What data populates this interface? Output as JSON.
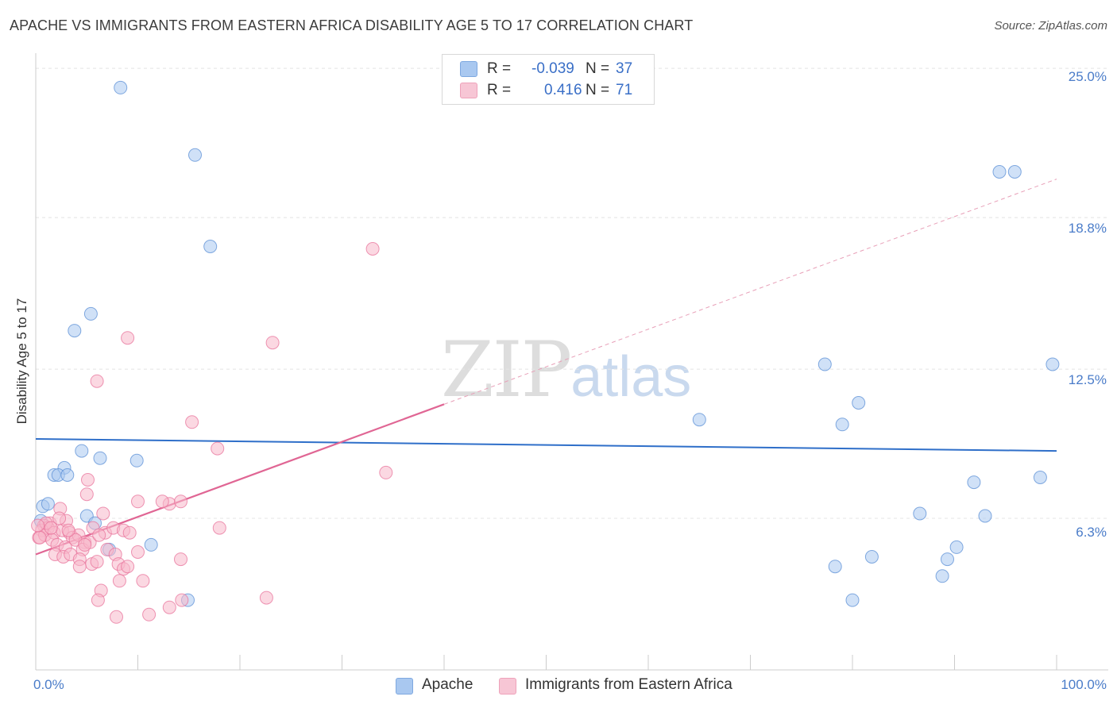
{
  "header": {
    "title": "APACHE VS IMMIGRANTS FROM EASTERN AFRICA DISABILITY AGE 5 TO 17 CORRELATION CHART",
    "source": "Source: ZipAtlas.com"
  },
  "watermark": {
    "zip": "ZIP",
    "atlas": "atlas"
  },
  "legend": {
    "rows": [
      {
        "r_label": "R =",
        "r_value": "-0.039",
        "n_label": "N =",
        "n_value": "37",
        "color": "#a9c8f0"
      },
      {
        "r_label": "R =",
        "r_value": "0.416",
        "n_label": "N =",
        "n_value": "71",
        "color": "#f7b8cb"
      }
    ]
  },
  "bottom_legend": {
    "items": [
      {
        "label": "Apache",
        "color": "#a9c8f0"
      },
      {
        "label": "Immigrants from Eastern Africa",
        "color": "#f7b8cb"
      }
    ]
  },
  "chart_data": {
    "type": "scatter",
    "title": "APACHE VS IMMIGRANTS FROM EASTERN AFRICA DISABILITY AGE 5 TO 17 CORRELATION CHART",
    "xlabel": "",
    "ylabel": "Disability Age 5 to 17",
    "xlim": [
      0,
      100
    ],
    "ylim": [
      0,
      25.5
    ],
    "x_tick_labels": [
      "0.0%",
      "100.0%"
    ],
    "y_ticks": [
      6.3,
      12.5,
      18.8,
      25.0
    ],
    "y_tick_labels": [
      "6.3%",
      "12.5%",
      "18.8%",
      "25.0%"
    ],
    "grid": true,
    "legend_position": "top-center",
    "series": [
      {
        "name": "Apache",
        "color": "#5b8fd6",
        "fill": "#a9c8f0",
        "trend": {
          "x": [
            0,
            100
          ],
          "y": [
            9.6,
            9.1
          ],
          "style": "solid"
        },
        "points": [
          [
            8.3,
            24.2
          ],
          [
            15.6,
            21.4
          ],
          [
            17.1,
            17.6
          ],
          [
            5.4,
            14.8
          ],
          [
            3.8,
            14.1
          ],
          [
            4.5,
            9.1
          ],
          [
            6.3,
            8.8
          ],
          [
            9.9,
            8.7
          ],
          [
            2.8,
            8.4
          ],
          [
            1.8,
            8.1
          ],
          [
            2.2,
            8.1
          ],
          [
            3.1,
            8.1
          ],
          [
            0.7,
            6.8
          ],
          [
            1.2,
            6.9
          ],
          [
            0.5,
            6.2
          ],
          [
            5.0,
            6.4
          ],
          [
            5.8,
            6.1
          ],
          [
            7.2,
            5.0
          ],
          [
            11.3,
            5.2
          ],
          [
            14.9,
            2.9
          ],
          [
            65.0,
            10.4
          ],
          [
            77.3,
            12.7
          ],
          [
            79.0,
            10.2
          ],
          [
            80.6,
            11.1
          ],
          [
            78.3,
            4.3
          ],
          [
            80.0,
            2.9
          ],
          [
            81.9,
            4.7
          ],
          [
            94.4,
            20.7
          ],
          [
            95.9,
            20.7
          ],
          [
            91.9,
            7.8
          ],
          [
            93.0,
            6.4
          ],
          [
            99.6,
            12.7
          ],
          [
            98.4,
            8.0
          ],
          [
            86.6,
            6.5
          ],
          [
            90.2,
            5.1
          ],
          [
            89.3,
            4.6
          ],
          [
            88.8,
            3.9
          ]
        ]
      },
      {
        "name": "Immigrants from Eastern Africa",
        "color": "#e8739b",
        "fill": "#f7b8cb",
        "trend": {
          "x": [
            0,
            100
          ],
          "y": [
            4.8,
            20.4
          ],
          "solid_until_x": 40
        },
        "points": [
          [
            33.0,
            17.5
          ],
          [
            9.0,
            13.8
          ],
          [
            23.2,
            13.6
          ],
          [
            6.0,
            12.0
          ],
          [
            15.3,
            10.3
          ],
          [
            17.8,
            9.2
          ],
          [
            34.3,
            8.2
          ],
          [
            5.1,
            7.9
          ],
          [
            5.0,
            7.3
          ],
          [
            10.0,
            7.0
          ],
          [
            13.1,
            6.9
          ],
          [
            14.2,
            7.0
          ],
          [
            2.4,
            6.7
          ],
          [
            6.6,
            6.5
          ],
          [
            1.4,
            6.1
          ],
          [
            0.8,
            6.0
          ],
          [
            1.2,
            5.9
          ],
          [
            0.6,
            5.8
          ],
          [
            0.3,
            5.5
          ],
          [
            0.9,
            5.6
          ],
          [
            1.8,
            5.7
          ],
          [
            2.6,
            5.8
          ],
          [
            3.3,
            5.7
          ],
          [
            3.6,
            5.5
          ],
          [
            4.2,
            5.6
          ],
          [
            4.8,
            5.3
          ],
          [
            5.6,
            5.9
          ],
          [
            6.8,
            5.7
          ],
          [
            7.6,
            5.9
          ],
          [
            8.6,
            5.8
          ],
          [
            9.2,
            5.7
          ],
          [
            18.0,
            5.9
          ],
          [
            1.6,
            5.4
          ],
          [
            2.1,
            5.2
          ],
          [
            2.9,
            5.1
          ],
          [
            3.9,
            5.4
          ],
          [
            4.6,
            5.0
          ],
          [
            5.3,
            5.3
          ],
          [
            6.2,
            5.6
          ],
          [
            7.0,
            5.0
          ],
          [
            7.8,
            4.8
          ],
          [
            10.0,
            4.9
          ],
          [
            1.9,
            4.8
          ],
          [
            2.7,
            4.7
          ],
          [
            3.4,
            4.8
          ],
          [
            4.3,
            4.6
          ],
          [
            5.5,
            4.4
          ],
          [
            6.0,
            4.5
          ],
          [
            8.1,
            4.4
          ],
          [
            8.6,
            4.2
          ],
          [
            9.0,
            4.3
          ],
          [
            4.3,
            4.3
          ],
          [
            14.2,
            4.6
          ],
          [
            10.5,
            3.7
          ],
          [
            8.2,
            3.7
          ],
          [
            6.4,
            3.3
          ],
          [
            6.1,
            2.9
          ],
          [
            7.9,
            2.2
          ],
          [
            11.1,
            2.3
          ],
          [
            13.1,
            2.6
          ],
          [
            14.3,
            2.9
          ],
          [
            22.6,
            3.0
          ],
          [
            3.0,
            6.2
          ],
          [
            2.3,
            6.3
          ],
          [
            0.4,
            5.5
          ],
          [
            1.0,
            6.1
          ],
          [
            4.8,
            5.2
          ],
          [
            12.4,
            7.0
          ],
          [
            0.2,
            6.0
          ],
          [
            1.5,
            5.9
          ],
          [
            3.2,
            5.8
          ]
        ]
      }
    ]
  }
}
